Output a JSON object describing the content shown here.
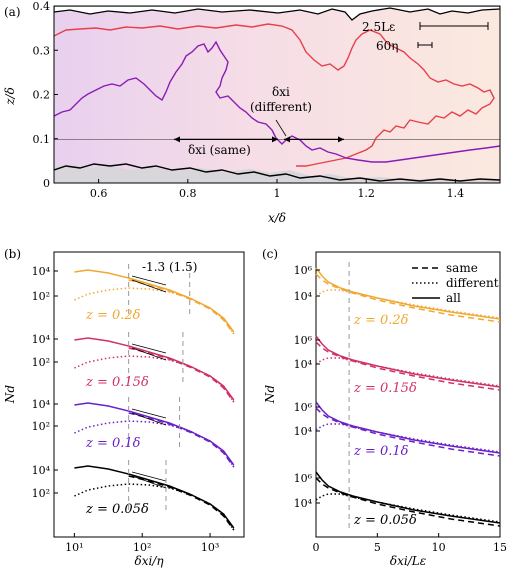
{
  "chart_data": [
    {
      "type": "image",
      "panel": "(a)",
      "xlabel": "x/δ",
      "ylabel": "z/δ",
      "xlim": [
        0.5,
        1.5
      ],
      "ylim": [
        0,
        0.4
      ],
      "xticks": [
        "0.6",
        "0.8",
        "1",
        "1.2",
        "1.4"
      ],
      "yticks": [
        "0",
        "0.1",
        "0.2",
        "0.3",
        "0.4"
      ],
      "scale_bars": [
        "2.5Lε",
        "60η"
      ],
      "annotations": [
        "δxi (same)",
        "δxi",
        "(different)"
      ],
      "reference_line_z": 0.1
    },
    {
      "type": "line",
      "panel": "(b)",
      "xlabel": "δxi/η",
      "ylabel": "Nd",
      "xscale": "log",
      "yscale": "log",
      "xticks": [
        "10¹",
        "10²",
        "10³"
      ],
      "yticks": [
        "10²",
        "10⁴"
      ],
      "slope_label": "-1.3 (1.5)",
      "groups": [
        {
          "name": "z = 0.2δ",
          "color": "#f0a830"
        },
        {
          "name": "z = 0.15δ",
          "color": "#d0306a"
        },
        {
          "name": "z = 0.1δ",
          "color": "#6a20c8"
        },
        {
          "name": "z = 0.05δ",
          "color": "#000000"
        }
      ]
    },
    {
      "type": "line",
      "panel": "(c)",
      "xlabel": "δxi/Lε",
      "ylabel": "Nd",
      "yscale": "log",
      "xlim": [
        0,
        15
      ],
      "xticks": [
        "0",
        "5",
        "10",
        "15"
      ],
      "yticks": [
        "10⁴",
        "10⁶"
      ],
      "legend": [
        "same",
        "different",
        "all"
      ],
      "groups": [
        {
          "name": "z = 0.2δ",
          "color": "#f0a830"
        },
        {
          "name": "z = 0.15δ",
          "color": "#d0306a"
        },
        {
          "name": "z = 0.1δ",
          "color": "#6a20c8"
        },
        {
          "name": "z = 0.05δ",
          "color": "#000000"
        }
      ]
    }
  ]
}
